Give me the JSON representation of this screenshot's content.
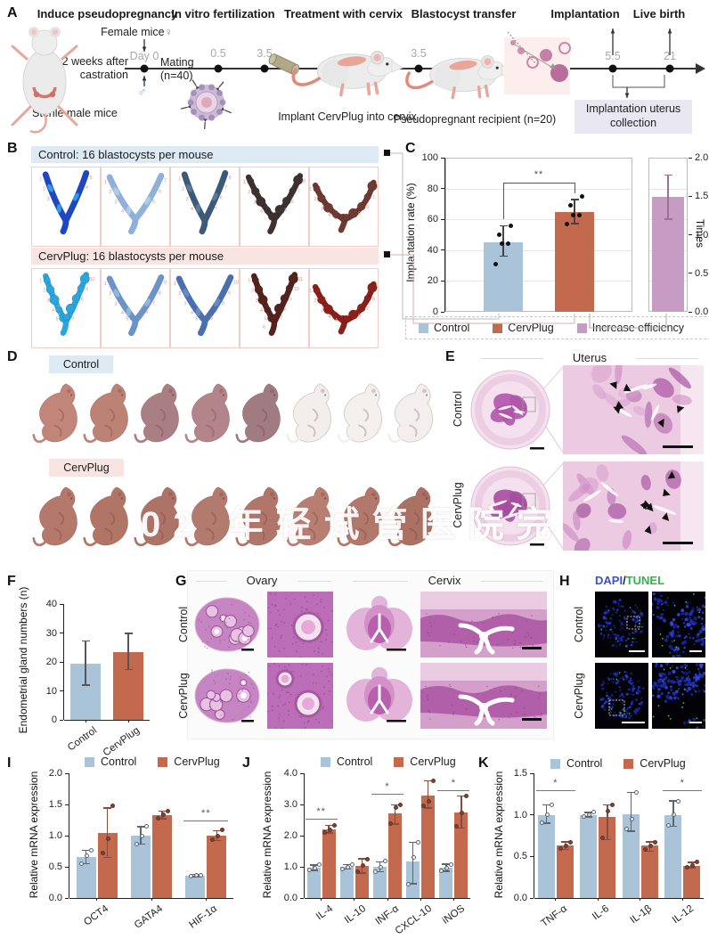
{
  "panel_a": {
    "label": "A",
    "steps": [
      "Induce pseudopregnancy",
      "In vitro fertilization",
      "Treatment with cervix",
      "Blastocyst transfer",
      "Implantation",
      "Live birth"
    ],
    "female_mice": "Female mice",
    "female_symbol": "♀",
    "male_symbol": "♂",
    "day0": "Day 0",
    "castration": "2 weeks after castration",
    "mating": "Mating",
    "mating_n": "(n=40)",
    "sterile": "Sterile male mice",
    "t05": "0.5",
    "t35a": "3.5",
    "t35b": "3.5",
    "t55": "5.5",
    "t21": "21",
    "implant_caption": "Implant CervPlug into cervix",
    "recipient_caption": "Pseudopregnant recipient (n=20)",
    "collection_box": "Implantation uterus collection"
  },
  "panel_b": {
    "label": "B",
    "control_header": "Control: 16 blastocysts per mouse",
    "cervplug_header": "CervPlug: 16 blastocysts per mouse",
    "control_uteri": [
      {
        "color": "#1f47c2",
        "accent": "#35b6e8",
        "variant": 0,
        "sites": 5,
        "bumpy": false
      },
      {
        "color": "#8fb0d8",
        "accent": "#bcd6ee",
        "variant": 1,
        "sites": 7,
        "bumpy": false
      },
      {
        "color": "#3c5a78",
        "accent": "#5e87a0",
        "variant": 0,
        "sites": 8,
        "bumpy": false
      },
      {
        "color": "#3d3230",
        "accent": "#554540",
        "variant": 1,
        "sites": 8,
        "bumpy": true
      },
      {
        "color": "#6e3a31",
        "accent": "#8a4a3c",
        "variant": 2,
        "sites": 8,
        "bumpy": true
      }
    ],
    "cervplug_uteri": [
      {
        "color": "#2ba6dc",
        "accent": "#7fd4f2",
        "variant": 0,
        "sites": 10,
        "bumpy": true
      },
      {
        "color": "#6b93c8",
        "accent": "#9fc0e4",
        "variant": 1,
        "sites": 9,
        "bumpy": false
      },
      {
        "color": "#4a6fae",
        "accent": "#7396c8",
        "variant": 1,
        "sites": 10,
        "bumpy": false
      },
      {
        "color": "#55231d",
        "accent": "#7a3a30",
        "variant": 0,
        "sites": 11,
        "bumpy": true
      },
      {
        "color": "#8c201a",
        "accent": "#a83528",
        "variant": 2,
        "sites": 9,
        "bumpy": true
      }
    ]
  },
  "panel_c": {
    "label": "C",
    "chart": {
      "type": "bar",
      "ylabel_left": "Implantation rate (%)",
      "ylabel_right": "Times",
      "ylim_left": [
        0,
        100
      ],
      "yticks_left": [
        "0",
        "20",
        "40",
        "60",
        "80",
        "100"
      ],
      "ylim_right": [
        0,
        2
      ],
      "yticks_right": [
        "0.0",
        "0.5",
        "1.0",
        "1.5",
        "2.0"
      ],
      "significance": "**",
      "bars": [
        {
          "name": "Control",
          "color": "#a9c3d9",
          "axis": "left",
          "value": 45,
          "err": [
            36,
            56
          ],
          "dots": [
            31,
            44,
            44,
            50,
            56
          ]
        },
        {
          "name": "CervPlug",
          "color": "#c3694e",
          "axis": "left",
          "value": 65,
          "err": [
            57,
            73
          ],
          "dots": [
            57,
            63,
            63,
            69,
            75
          ]
        },
        {
          "name": "Increase efficiency",
          "color": "#c69cc2",
          "axis": "right",
          "value": 1.49,
          "err": [
            1.2,
            1.78
          ],
          "dots": []
        }
      ],
      "legend": [
        "Control",
        "CervPlug",
        "Increase efficiency"
      ]
    }
  },
  "panel_d": {
    "label": "D",
    "control": "Control",
    "cervplug": "CervPlug",
    "watermark": "02 年轻试管医院完",
    "control_pups": [
      "#c18579",
      "#bd8276",
      "#aa7e85",
      "#b4848b",
      "#a07b82",
      "#f2eeec",
      "#f4f0ee",
      "#f3efee"
    ],
    "cervplug_pups": [
      "#b5796c",
      "#b17566",
      "#ae7367",
      "#b37a6e",
      "#b0766a",
      "#b87e71",
      "#b1786b",
      "#ab7164"
    ]
  },
  "panel_e": {
    "label": "E",
    "title": "Uterus",
    "row_labels": [
      "Control",
      "CervPlug"
    ]
  },
  "panel_f": {
    "label": "F",
    "chart": {
      "type": "bar",
      "ylabel": "Endometrial gland numbers (n)",
      "ylim": [
        0,
        40
      ],
      "yticks": [
        "0",
        "10",
        "20",
        "30",
        "40"
      ],
      "categories": [
        "Control",
        "CervPlug"
      ],
      "values": [
        19.5,
        23.5
      ],
      "errors": [
        [
          12,
          27.3
        ],
        [
          17.3,
          30
        ]
      ],
      "colors": [
        "#a9c3d9",
        "#c3694e"
      ]
    }
  },
  "panel_g": {
    "label": "G",
    "ovary_title": "Ovary",
    "cervix_title": "Cervix",
    "row_labels": [
      "Control",
      "CervPlug"
    ]
  },
  "panel_h": {
    "label": "H",
    "dapi": "DAPI",
    "slash": "/",
    "tunel": "TUNEL",
    "dapi_color": "#3b4fd8",
    "tunel_color": "#2eb44a",
    "row_labels": [
      "Control",
      "CervPlug"
    ]
  },
  "panel_i": {
    "label": "I",
    "chart": {
      "type": "grouped_bar",
      "ylabel": "Relative mRNA expression",
      "ylim": [
        0,
        2
      ],
      "yticks": [
        "0.0",
        "0.5",
        "1.0",
        "1.5",
        "2.0"
      ],
      "categories": [
        "OCT4",
        "GATA4",
        "HIF-1α"
      ],
      "series": [
        {
          "name": "Control",
          "color": "#a9c3d9",
          "values": [
            0.66,
            1.0,
            0.36
          ],
          "errors": [
            [
              0.55,
              0.77
            ],
            [
              0.86,
              1.15
            ],
            [
              0.34,
              0.38
            ]
          ],
          "dots": [
            [
              0.55,
              0.68,
              0.77
            ],
            [
              0.86,
              1.0,
              1.15
            ],
            [
              0.35,
              0.36,
              0.37
            ]
          ]
        },
        {
          "name": "CervPlug",
          "color": "#c3694e",
          "values": [
            1.05,
            1.33,
            1.0
          ],
          "errors": [
            [
              0.65,
              1.45
            ],
            [
              1.27,
              1.4
            ],
            [
              0.92,
              1.08
            ]
          ],
          "dots": [
            [
              0.72,
              0.95,
              1.48
            ],
            [
              1.28,
              1.33,
              1.4
            ],
            [
              0.93,
              1.0,
              1.09
            ]
          ]
        }
      ],
      "significance": [
        {
          "category": "HIF-1α",
          "label": "**",
          "y": 1.24
        }
      ]
    }
  },
  "panel_j": {
    "label": "J",
    "chart": {
      "type": "grouped_bar",
      "ylabel": "Relative mRNA expression",
      "ylim": [
        0,
        4
      ],
      "yticks": [
        "0.0",
        "1.0",
        "2.0",
        "3.0",
        "4.0"
      ],
      "categories": [
        "IL-4",
        "IL-10",
        "INF-α",
        "CXCL-10",
        "iNOS"
      ],
      "series": [
        {
          "name": "Control",
          "color": "#a9c3d9",
          "values": [
            0.97,
            1.0,
            1.0,
            1.17,
            0.97
          ],
          "errors": [
            [
              0.88,
              1.06
            ],
            [
              0.92,
              1.08
            ],
            [
              0.83,
              1.17
            ],
            [
              0.45,
              1.8
            ],
            [
              0.85,
              1.09
            ]
          ],
          "dots": [
            [
              0.9,
              0.97,
              1.08
            ],
            [
              0.93,
              1.0,
              1.07
            ],
            [
              0.85,
              1.0,
              1.18
            ],
            [
              0.45,
              1.3,
              1.8
            ],
            [
              0.88,
              0.97,
              1.07
            ]
          ]
        },
        {
          "name": "CervPlug",
          "color": "#c3694e",
          "values": [
            2.2,
            1.03,
            2.72,
            3.3,
            2.73
          ],
          "errors": [
            [
              2.08,
              2.33
            ],
            [
              0.8,
              1.26
            ],
            [
              2.36,
              3.0
            ],
            [
              2.88,
              3.76
            ],
            [
              2.24,
              3.28
            ]
          ],
          "dots": [
            [
              2.1,
              2.2,
              2.33
            ],
            [
              0.85,
              1.05,
              1.25
            ],
            [
              2.4,
              2.9,
              3.0
            ],
            [
              2.95,
              3.1,
              3.75
            ],
            [
              2.3,
              2.72,
              3.27
            ]
          ]
        }
      ],
      "significance": [
        {
          "category": "IL-4",
          "label": "**",
          "y": 2.55
        },
        {
          "category": "INF-α",
          "label": "*",
          "y": 3.35
        },
        {
          "category": "iNOS",
          "label": "*",
          "y": 3.45
        }
      ]
    }
  },
  "panel_k": {
    "label": "K",
    "chart": {
      "type": "grouped_bar",
      "ylabel": "Relative mRNA expression",
      "ylim": [
        0,
        1.5
      ],
      "yticks": [
        "0.0",
        "0.5",
        "1.0",
        "1.5"
      ],
      "categories": [
        "TNF-α",
        "IL-6",
        "IL-1β",
        "IL-12"
      ],
      "series": [
        {
          "name": "Control",
          "color": "#a9c3d9",
          "values": [
            1.0,
            1.0,
            1.01,
            1.0
          ],
          "errors": [
            [
              0.9,
              1.12
            ],
            [
              0.97,
              1.03
            ],
            [
              0.8,
              1.27
            ],
            [
              0.86,
              1.17
            ]
          ],
          "dots": [
            [
              0.91,
              1.0,
              1.12
            ],
            [
              0.98,
              1.0,
              1.03
            ],
            [
              0.83,
              0.95,
              1.27
            ],
            [
              0.87,
              1.0,
              1.16
            ]
          ]
        },
        {
          "name": "CervPlug",
          "color": "#c3694e",
          "values": [
            0.63,
            0.97,
            0.63,
            0.39
          ],
          "errors": [
            [
              0.58,
              0.68
            ],
            [
              0.7,
              1.12
            ],
            [
              0.56,
              0.68
            ],
            [
              0.36,
              0.43
            ]
          ],
          "dots": [
            [
              0.6,
              0.63,
              0.67
            ],
            [
              0.72,
              1.05,
              1.12
            ],
            [
              0.58,
              0.63,
              0.67
            ],
            [
              0.37,
              0.39,
              0.43
            ]
          ]
        }
      ],
      "significance": [
        {
          "category": "TNF-α",
          "label": "*",
          "y": 1.3
        },
        {
          "category": "IL-12",
          "label": "*",
          "y": 1.3
        }
      ]
    }
  }
}
